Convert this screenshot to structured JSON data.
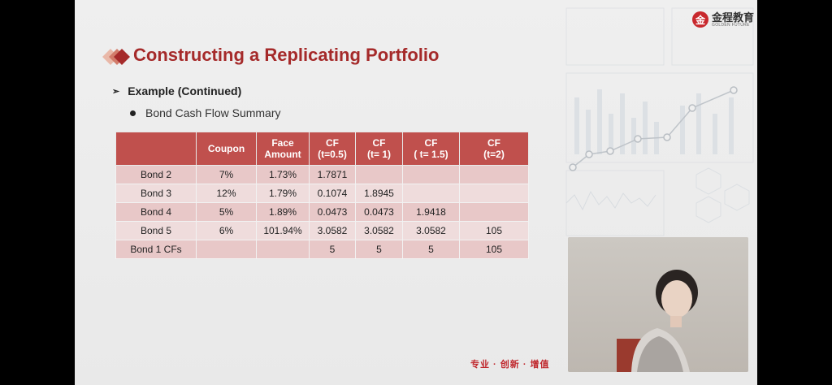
{
  "logo": {
    "name_cn": "金程教育",
    "name_en": "GOLDEN FUTURE",
    "mark_icon": "golden-future-logo-icon"
  },
  "slide": {
    "title": "Constructing a Replicating Portfolio",
    "bullet_level1": "Example (Continued)",
    "bullet_level2": "Bond Cash Flow Summary"
  },
  "table": {
    "headers": [
      [
        ""
      ],
      [
        "Coupon"
      ],
      [
        "Face",
        "Amount"
      ],
      [
        "CF",
        "(t=0.5)"
      ],
      [
        "CF",
        "(t= 1)"
      ],
      [
        "CF",
        "( t= 1.5)"
      ],
      [
        "CF",
        "(t=2)"
      ]
    ],
    "rows": [
      [
        "Bond 2",
        "7%",
        "1.73%",
        "1.7871",
        "",
        "",
        ""
      ],
      [
        "Bond 3",
        "12%",
        "1.79%",
        "0.1074",
        "1.8945",
        "",
        ""
      ],
      [
        "Bond 4",
        "5%",
        "1.89%",
        "0.0473",
        "0.0473",
        "1.9418",
        ""
      ],
      [
        "Bond 5",
        "6%",
        "101.94%",
        "3.0582",
        "3.0582",
        "3.0582",
        "105"
      ],
      [
        "Bond 1 CFs",
        "",
        "",
        "5",
        "5",
        "5",
        "105"
      ]
    ]
  },
  "footer": {
    "slogan": "专业 · 创新 · 增值"
  },
  "colors": {
    "title": "#a52a2a",
    "header_bg": "#c0504d",
    "row_odd": "#e8c8c8",
    "row_even": "#efdcdc",
    "accent": "#c8282d"
  }
}
